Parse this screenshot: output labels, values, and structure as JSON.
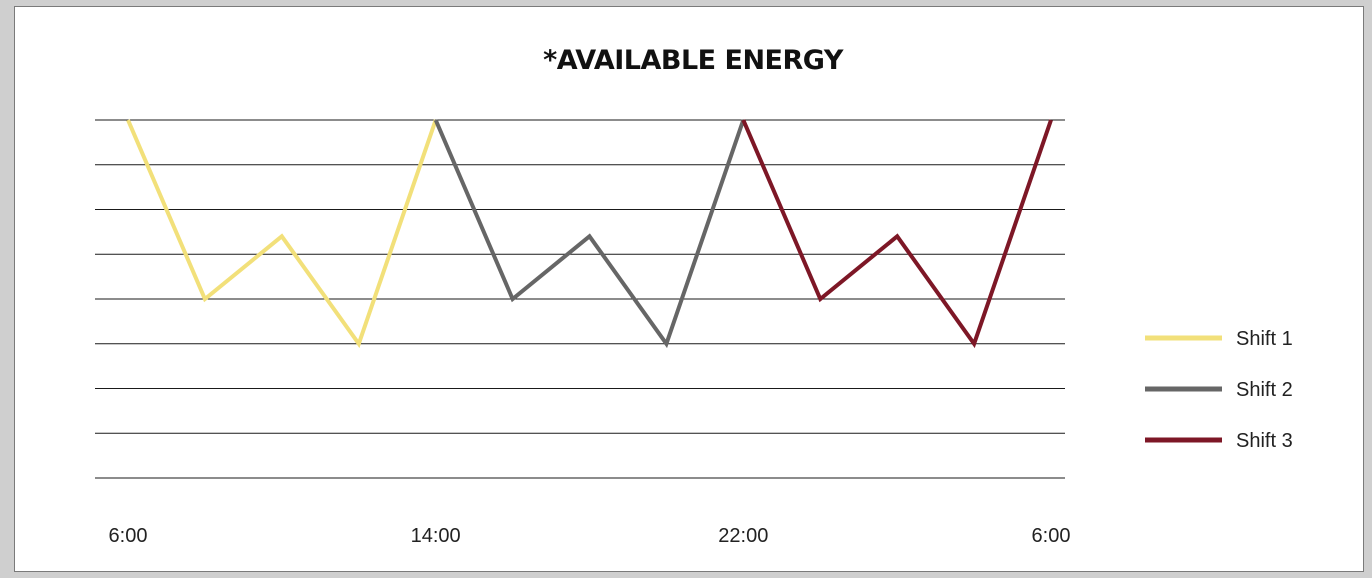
{
  "chart_data": {
    "type": "line",
    "title": "*Available Energy",
    "xlabel": "",
    "ylabel": "",
    "x_tick_labels": [
      "6:00",
      "14:00",
      "22:00",
      "6:00"
    ],
    "ylim": [
      0,
      8
    ],
    "grid": true,
    "legend_position": "right",
    "series": [
      {
        "name": "Shift 1",
        "color": "#f2e07a",
        "x": [
          0,
          1,
          2,
          3,
          4
        ],
        "y": [
          8,
          4,
          5.4,
          3,
          8
        ]
      },
      {
        "name": "Shift 2",
        "color": "#666666",
        "x": [
          4,
          5,
          6,
          7,
          8
        ],
        "y": [
          8,
          4,
          5.4,
          3,
          8
        ]
      },
      {
        "name": "Shift 3",
        "color": "#7d1726",
        "x": [
          8,
          9,
          10,
          11,
          12
        ],
        "y": [
          8,
          4,
          5.4,
          3,
          8
        ]
      }
    ]
  }
}
